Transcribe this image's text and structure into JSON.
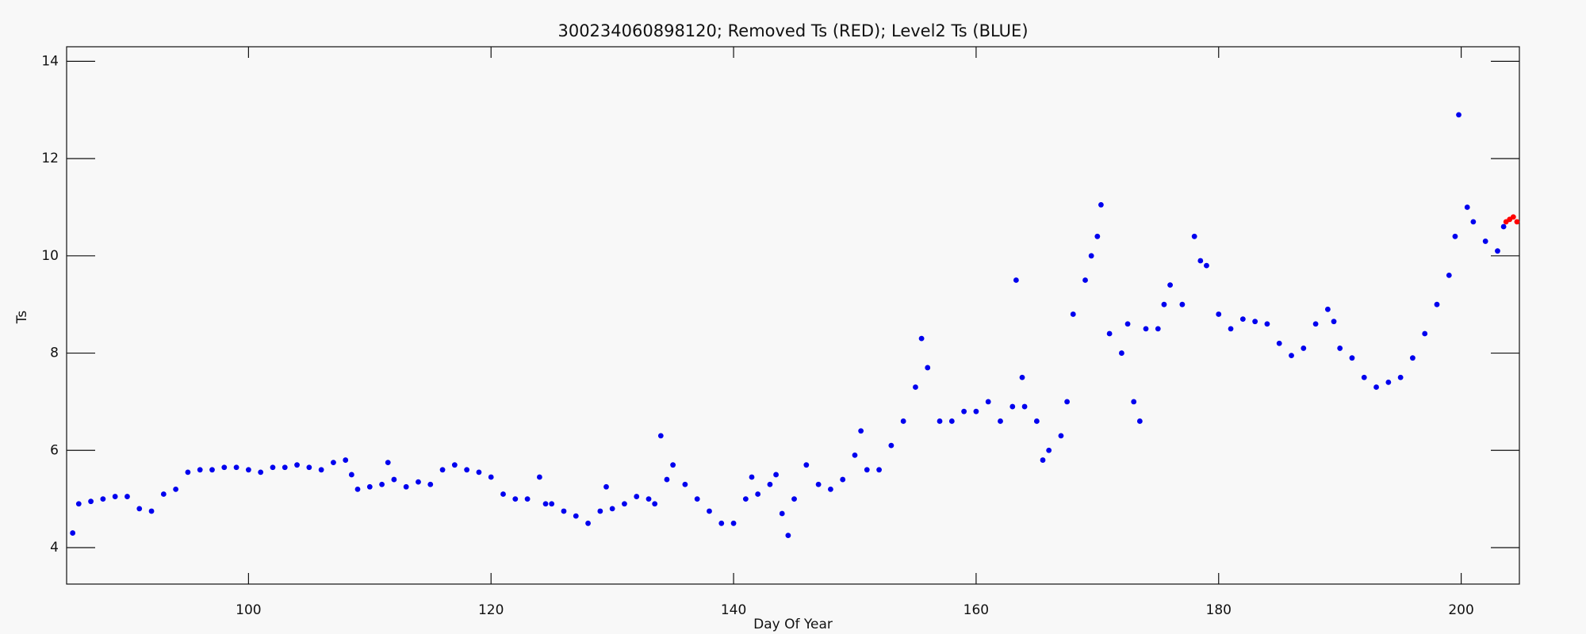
{
  "chart_data": {
    "type": "scatter",
    "title": "300234060898120; Removed Ts (RED); Level2 Ts (BLUE)",
    "x_label": "Day Of Year",
    "y_label": "Ts",
    "xlim": [
      85,
      204.8
    ],
    "ylim": [
      3.25,
      14.3
    ],
    "xticks": [
      100,
      120,
      140,
      160,
      180,
      200
    ],
    "yticks": [
      4,
      6,
      8,
      10,
      12,
      14
    ],
    "series": [
      {
        "color": "#0000ee",
        "x": [
          85.5,
          86,
          87,
          88,
          89,
          90,
          91,
          92,
          93,
          94,
          95,
          96,
          97,
          98,
          99,
          100,
          101,
          102,
          103,
          104,
          105,
          106,
          107,
          108,
          108.5,
          109,
          110,
          111,
          111.5,
          112,
          113,
          114,
          115,
          116,
          117,
          118,
          119,
          120,
          121,
          122,
          123,
          124,
          124.5,
          125,
          126,
          127,
          128,
          129,
          129.5,
          130,
          131,
          132,
          133,
          133.5,
          134,
          134.5,
          135,
          136,
          137,
          138,
          139,
          140,
          141,
          141.5,
          142,
          143,
          143.5,
          144,
          144.5,
          145,
          146,
          147,
          148,
          149,
          150,
          150.5,
          151,
          152,
          153,
          154,
          155,
          155.5,
          156,
          157,
          158,
          159,
          160,
          161,
          162,
          163,
          163.3,
          163.8,
          164,
          165,
          165.5,
          166,
          167,
          167.5,
          168,
          169,
          169.5,
          170,
          170.3,
          171,
          172,
          172.5,
          173,
          173.5,
          174,
          175,
          175.5,
          176,
          177,
          178,
          178.5,
          179,
          180,
          181,
          182,
          183,
          184,
          185,
          186,
          187,
          188,
          189,
          189.5,
          190,
          191,
          192,
          193,
          194,
          195,
          196,
          197,
          198,
          199,
          199.5,
          199.8,
          200.5,
          201,
          202,
          203,
          203.5
        ],
        "values": [
          4.3,
          4.9,
          4.95,
          5.0,
          5.05,
          5.05,
          4.8,
          4.75,
          5.1,
          5.2,
          5.55,
          5.6,
          5.6,
          5.65,
          5.65,
          5.6,
          5.55,
          5.65,
          5.65,
          5.7,
          5.65,
          5.6,
          5.75,
          5.8,
          5.5,
          5.2,
          5.25,
          5.3,
          5.75,
          5.4,
          5.25,
          5.35,
          5.3,
          5.6,
          5.7,
          5.6,
          5.55,
          5.45,
          5.1,
          5.0,
          5.0,
          5.45,
          4.9,
          4.9,
          4.75,
          4.65,
          4.5,
          4.75,
          5.25,
          4.8,
          4.9,
          5.05,
          5.0,
          4.9,
          6.3,
          5.4,
          5.7,
          5.3,
          5.0,
          4.75,
          4.5,
          4.5,
          5.0,
          5.45,
          5.1,
          5.3,
          5.5,
          4.7,
          4.25,
          5.0,
          5.7,
          5.3,
          5.2,
          5.4,
          5.9,
          6.4,
          5.6,
          5.6,
          6.1,
          6.6,
          7.3,
          8.3,
          7.7,
          6.6,
          6.6,
          6.8,
          6.8,
          7.0,
          6.6,
          6.9,
          9.5,
          7.5,
          6.9,
          6.6,
          5.8,
          6.0,
          6.3,
          7.0,
          8.8,
          9.5,
          10.0,
          10.4,
          11.05,
          8.4,
          8.0,
          8.6,
          7.0,
          6.6,
          8.5,
          8.5,
          9.0,
          9.4,
          9.0,
          10.4,
          9.9,
          9.8,
          8.8,
          8.5,
          8.7,
          8.65,
          8.6,
          8.2,
          7.95,
          8.1,
          8.6,
          8.9,
          8.65,
          8.1,
          7.9,
          7.5,
          7.3,
          7.4,
          7.5,
          7.9,
          8.4,
          9.0,
          9.6,
          10.4,
          12.9,
          11.0,
          10.7,
          10.3,
          10.1,
          10.6
        ]
      },
      {
        "color": "#ff0000",
        "x": [
          203.7,
          204,
          204.3,
          204.6
        ],
        "values": [
          10.7,
          10.75,
          10.8,
          10.7
        ]
      }
    ]
  }
}
